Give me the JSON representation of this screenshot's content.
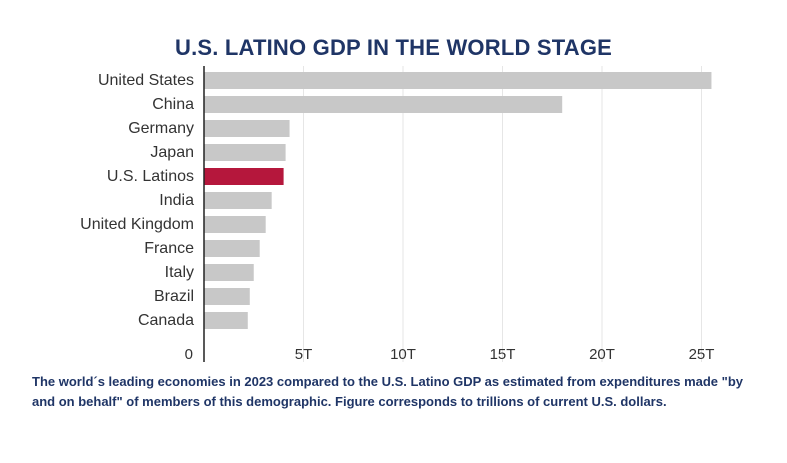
{
  "chart_data": {
    "type": "bar",
    "orientation": "horizontal",
    "title": "U.S. LATINO GDP IN THE WORLD STAGE",
    "categories": [
      "United States",
      "China",
      "Germany",
      "Japan",
      "U.S. Latinos",
      "India",
      "United Kingdom",
      "France",
      "Italy",
      "Brazil",
      "Canada"
    ],
    "values": [
      25.5,
      18.0,
      4.3,
      4.1,
      4.0,
      3.4,
      3.1,
      2.8,
      2.5,
      2.3,
      2.2
    ],
    "highlight_category": "U.S. Latinos",
    "xlim": [
      0,
      26
    ],
    "xticks": [
      0,
      5,
      10,
      15,
      20,
      25
    ],
    "xtick_labels": [
      "0",
      "5T",
      "10T",
      "15T",
      "20T",
      "25T"
    ],
    "xlabel": "",
    "ylabel": "",
    "grid": true
  },
  "colors": {
    "bar": "#c8c8c8",
    "highlight": "#b5173c",
    "title": "#1f3566",
    "label": "#333333",
    "grid": "#e6e6e6",
    "axis": "#222222"
  },
  "caption": " The world´s leading economies in 2023 compared to the U.S. Latino GDP as estimated from expenditures made \"by and on behalf\" of members of this demographic. Figure corresponds to trillions of current U.S. dollars."
}
